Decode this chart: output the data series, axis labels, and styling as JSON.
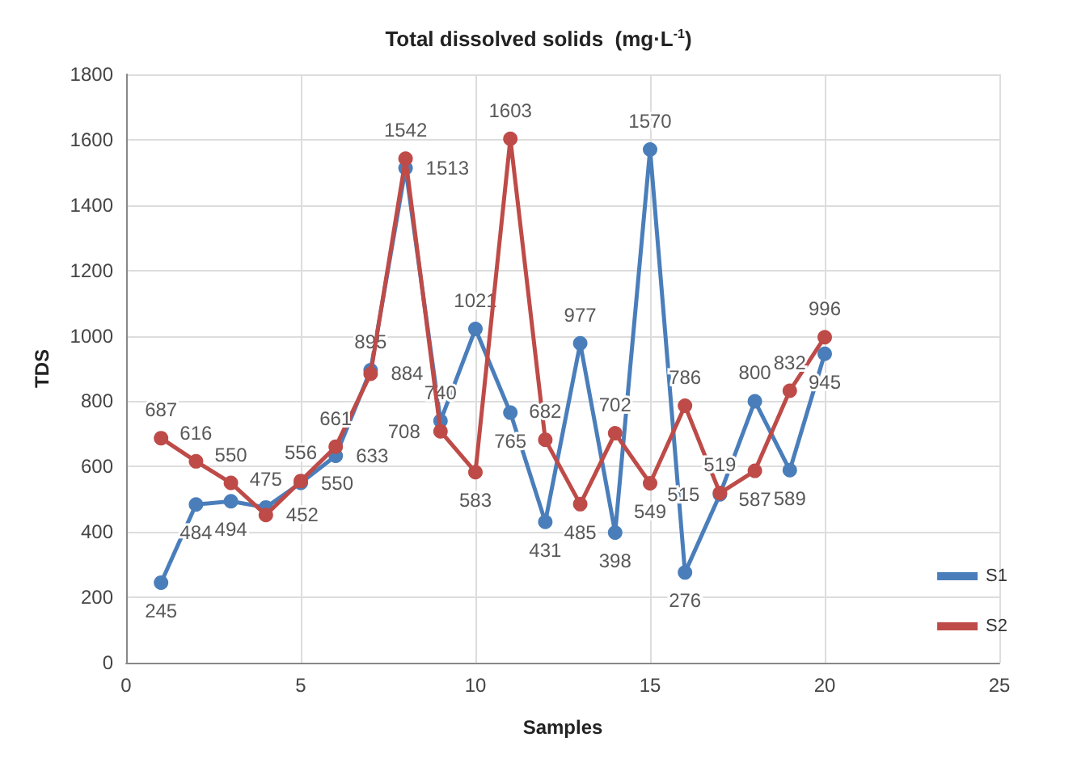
{
  "chart_data": {
    "type": "line",
    "title": "Total dissolved solids  (mg·L$^{-1}$)",
    "xlabel": "Samples",
    "ylabel": "TDS",
    "x": [
      1,
      2,
      3,
      4,
      5,
      6,
      7,
      8,
      9,
      10,
      11,
      12,
      13,
      14,
      15,
      16,
      17,
      18,
      19,
      20
    ],
    "series": [
      {
        "name": "S1",
        "color": "#4a7ebb",
        "values": [
          245,
          484,
          494,
          475,
          550,
          633,
          895,
          1513,
          740,
          1021,
          765,
          431,
          977,
          398,
          1570,
          276,
          515,
          800,
          589,
          945
        ]
      },
      {
        "name": "S2",
        "color": "#be4b48",
        "values": [
          687,
          616,
          550,
          452,
          556,
          661,
          884,
          1542,
          708,
          583,
          1603,
          682,
          485,
          702,
          549,
          786,
          519,
          587,
          832,
          996
        ]
      }
    ],
    "xlim": [
      0,
      25
    ],
    "xticks": [
      0,
      5,
      10,
      15,
      20,
      25
    ],
    "ylim": [
      0,
      1800
    ],
    "yticks": [
      0,
      200,
      400,
      600,
      800,
      1000,
      1200,
      1400,
      1600,
      1800
    ],
    "grid": true,
    "legend": "bottom right",
    "marker": "circle",
    "line_style": "solid",
    "data_labels": true
  }
}
